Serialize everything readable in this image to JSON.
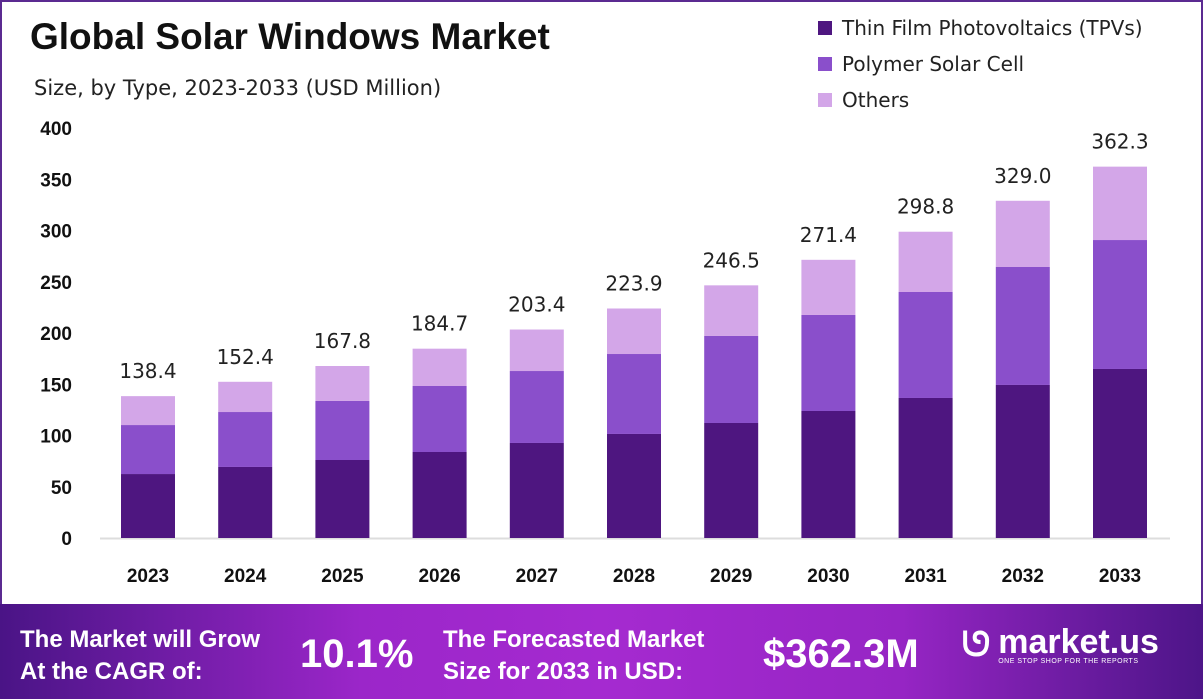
{
  "chart_data": {
    "type": "bar",
    "stacked": true,
    "title": "Global Solar Windows Market",
    "subtitle": "Size, by Type, 2023-2033 (USD Million)",
    "categories": [
      "2023",
      "2024",
      "2025",
      "2026",
      "2027",
      "2028",
      "2029",
      "2030",
      "2031",
      "2032",
      "2033"
    ],
    "series": [
      {
        "name": "Thin Film Photovoltaics (TPVs)",
        "color": "#4e1680",
        "values": [
          62.4,
          69.3,
          76.1,
          83.9,
          92.7,
          101.5,
          112.2,
          123.9,
          136.6,
          149.3,
          164.9
        ]
      },
      {
        "name": "Polymer Solar Cell",
        "color": "#8a4fcb",
        "values": [
          47.8,
          53.6,
          57.6,
          64.4,
          70.2,
          78.0,
          84.9,
          93.7,
          103.4,
          115.1,
          125.8
        ]
      },
      {
        "name": "Others",
        "color": "#d3a6e8",
        "values": [
          28.2,
          29.5,
          34.1,
          36.4,
          40.5,
          44.4,
          49.4,
          53.8,
          58.8,
          64.6,
          71.6
        ]
      }
    ],
    "totals": [
      "138.4",
      "152.4",
      "167.8",
      "184.7",
      "203.4",
      "223.9",
      "246.5",
      "271.4",
      "298.8",
      "329.0",
      "362.3"
    ],
    "yticks": [
      "0",
      "50",
      "100",
      "150",
      "200",
      "250",
      "300",
      "350",
      "400"
    ],
    "ylim": [
      0,
      400
    ],
    "grid": false,
    "legend_placement": "top-right"
  },
  "footer": {
    "cagr_label_1": "The Market will Grow",
    "cagr_label_2": "At the CAGR of:",
    "cagr_value": "10.1%",
    "forecast_label_1": "The Forecasted Market",
    "forecast_label_2": "Size for 2033 in USD:",
    "forecast_value": "$362.3M",
    "logo_name": "market.us",
    "logo_tagline": "ONE STOP SHOP FOR THE REPORTS"
  }
}
